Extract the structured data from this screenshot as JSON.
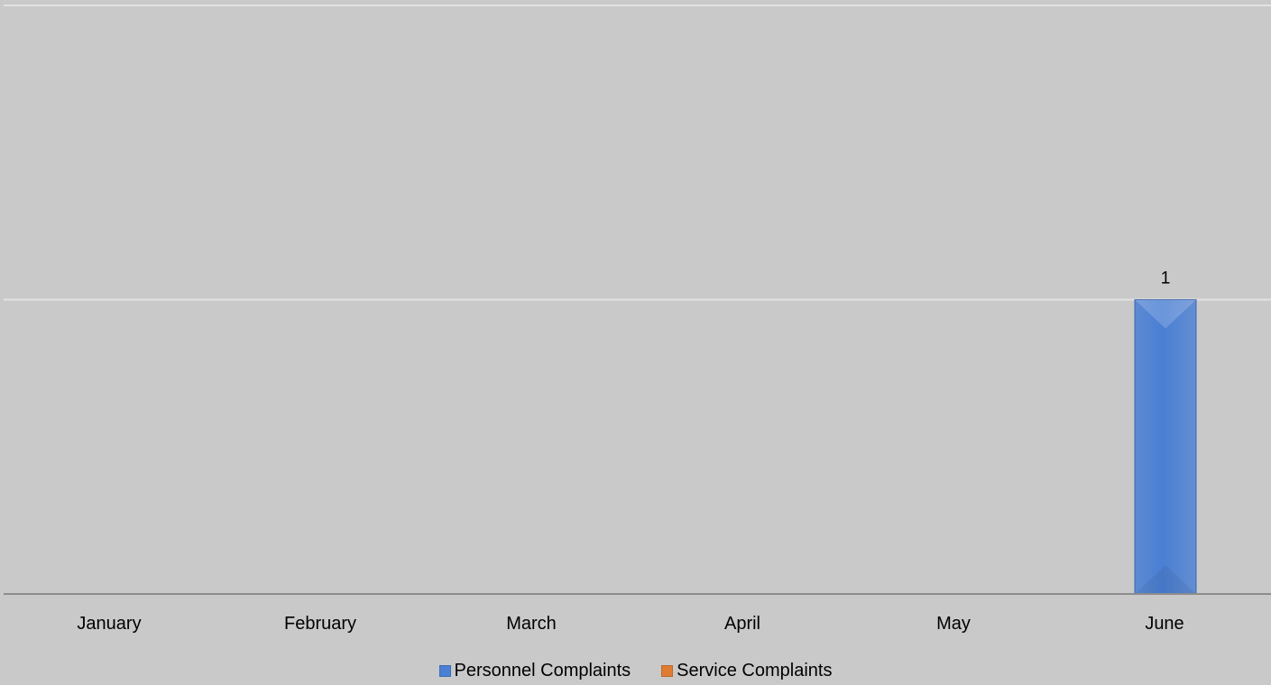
{
  "chart_data": {
    "type": "bar",
    "categories": [
      "January",
      "February",
      "March",
      "April",
      "May",
      "June"
    ],
    "series": [
      {
        "name": "Personnel Complaints",
        "values": [
          0,
          0,
          0,
          0,
          0,
          1
        ],
        "color": "#4a7fd4"
      },
      {
        "name": "Service Complaints",
        "values": [
          0,
          0,
          0,
          0,
          0,
          0
        ],
        "color": "#e07b33"
      }
    ],
    "data_labels": [
      {
        "series": 0,
        "category": "June",
        "text": "1"
      }
    ],
    "ylim": [
      0,
      2
    ],
    "grid": true,
    "legend_position": "bottom",
    "background_color": "#c9c9c9",
    "gridline_color": "#e2e2e2",
    "axis_color": "#8c8c8c"
  }
}
